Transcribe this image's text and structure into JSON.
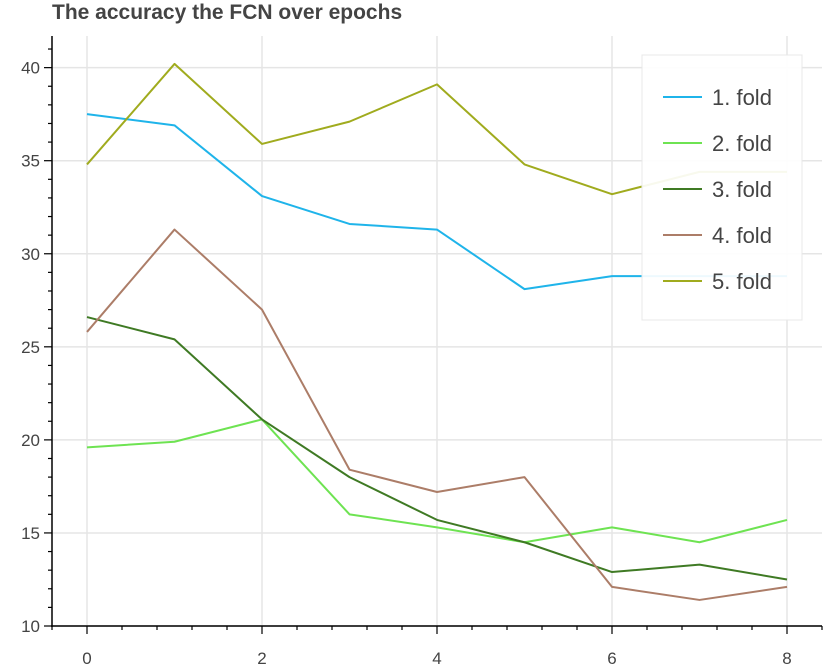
{
  "chart_data": {
    "type": "line",
    "title": "The accuracy the FCN over epochs",
    "xlabel": "",
    "ylabel": "",
    "x": [
      0,
      1,
      2,
      3,
      4,
      5,
      6,
      7,
      8
    ],
    "xlim": [
      -0.4,
      8.4
    ],
    "ylim": [
      10,
      41.7
    ],
    "xticks": [
      0,
      2,
      4,
      6,
      8
    ],
    "yticks": [
      10,
      15,
      20,
      25,
      30,
      35,
      40
    ],
    "grid": true,
    "legend_position": "top-right",
    "series": [
      {
        "name": "1. fold",
        "color": "#1fb4ea",
        "values": [
          37.5,
          36.9,
          33.1,
          31.6,
          31.3,
          28.1,
          28.8,
          28.8,
          28.8
        ]
      },
      {
        "name": "2. fold",
        "color": "#6ee352",
        "values": [
          19.6,
          19.9,
          21.1,
          16.0,
          15.3,
          14.5,
          15.3,
          14.5,
          15.7
        ]
      },
      {
        "name": "3. fold",
        "color": "#3f7a24",
        "values": [
          26.6,
          25.4,
          21.1,
          18.0,
          15.7,
          14.5,
          12.9,
          13.3,
          12.5
        ]
      },
      {
        "name": "4. fold",
        "color": "#ac7d68",
        "values": [
          25.8,
          31.3,
          27.0,
          18.4,
          17.2,
          18.0,
          12.1,
          11.4,
          12.1
        ]
      },
      {
        "name": "5. fold",
        "color": "#a0ab1e",
        "values": [
          34.8,
          40.2,
          35.9,
          37.1,
          39.1,
          34.8,
          33.2,
          34.4,
          34.4
        ]
      }
    ]
  }
}
